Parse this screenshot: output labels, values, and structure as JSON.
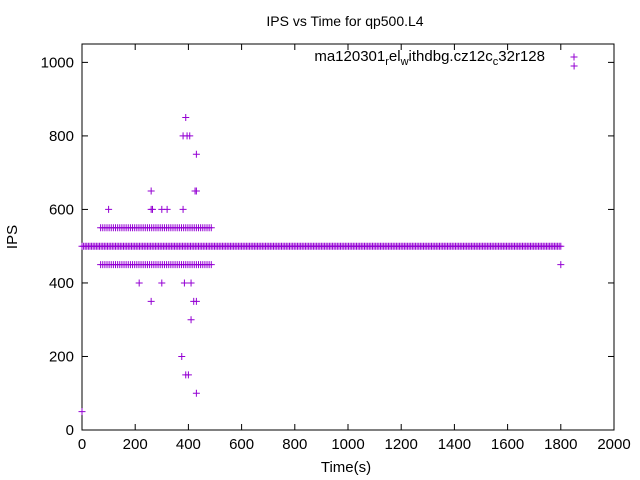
{
  "chart_data": {
    "type": "scatter",
    "title": "IPS vs Time for qp500.L4",
    "xlabel": "Time(s)",
    "ylabel": "IPS",
    "xlim": [
      0,
      2000
    ],
    "ylim": [
      0,
      1050
    ],
    "xticks": [
      0,
      200,
      400,
      600,
      800,
      1000,
      1200,
      1400,
      1600,
      1800,
      2000
    ],
    "yticks": [
      0,
      200,
      400,
      600,
      800,
      1000
    ],
    "grid": false,
    "legend": "top-right",
    "marker_color": "#9400d3",
    "series": [
      {
        "name": "ma120301_rel_withdbg.cz12c_c32r128",
        "name_parts": {
          "a": "ma120301",
          "b": "r",
          "c": "el",
          "d": "w",
          "e": "ithdbg.cz12c",
          "f": "c",
          "g": "32r128"
        },
        "points": [
          [
            0,
            50
          ],
          [
            1850,
            990
          ],
          [
            1800,
            450
          ],
          [
            390,
            850
          ],
          [
            380,
            800
          ],
          [
            395,
            800
          ],
          [
            405,
            800
          ],
          [
            430,
            750
          ],
          [
            260,
            650
          ],
          [
            425,
            650
          ],
          [
            430,
            650
          ],
          [
            380,
            600
          ],
          [
            100,
            600
          ],
          [
            260,
            600
          ],
          [
            265,
            600
          ],
          [
            300,
            600
          ],
          [
            320,
            600
          ],
          [
            260,
            350
          ],
          [
            420,
            350
          ],
          [
            430,
            350
          ],
          [
            215,
            400
          ],
          [
            300,
            400
          ],
          [
            385,
            400
          ],
          [
            410,
            400
          ],
          [
            410,
            300
          ],
          [
            375,
            200
          ],
          [
            390,
            150
          ],
          [
            400,
            150
          ],
          [
            430,
            100
          ]
        ],
        "bands": [
          {
            "y": 500,
            "x_start": 0,
            "x_end": 1800,
            "step": 6
          },
          {
            "y": 550,
            "x_start": 70,
            "x_end": 490,
            "step": 8
          },
          {
            "y": 450,
            "x_start": 70,
            "x_end": 490,
            "step": 8
          }
        ]
      }
    ]
  }
}
